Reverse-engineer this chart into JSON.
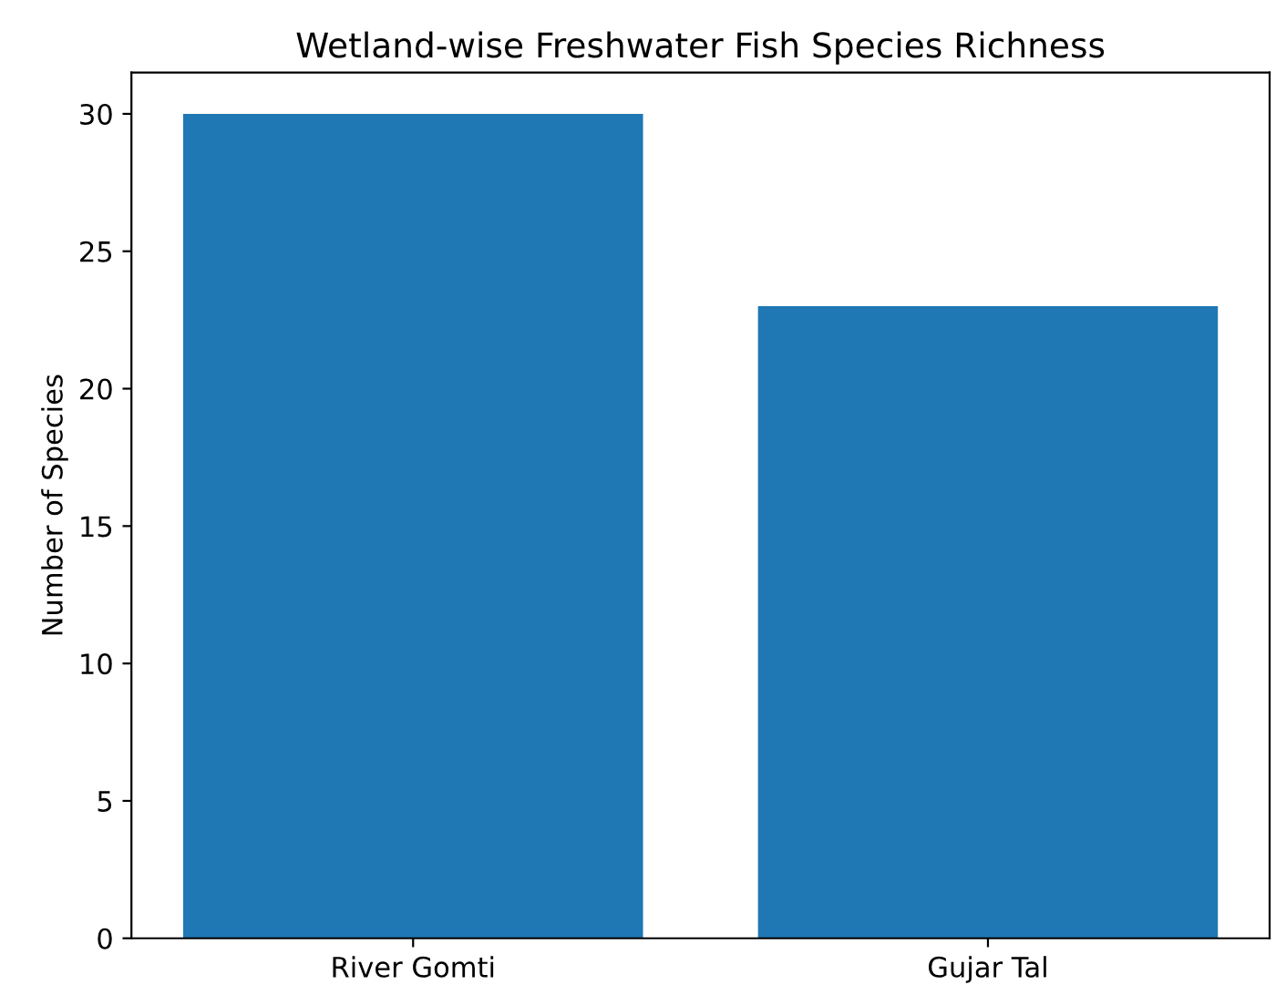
{
  "chart_data": {
    "type": "bar",
    "title": "Wetland-wise Freshwater Fish Species Richness",
    "ylabel": "Number of Species",
    "categories": [
      "River Gomti",
      "Gujar Tal"
    ],
    "values": [
      30,
      23
    ],
    "color": "#1f77b4",
    "ylim": [
      0,
      31.5
    ],
    "yticks": [
      0,
      5,
      10,
      15,
      20,
      25,
      30
    ],
    "grid": false
  }
}
